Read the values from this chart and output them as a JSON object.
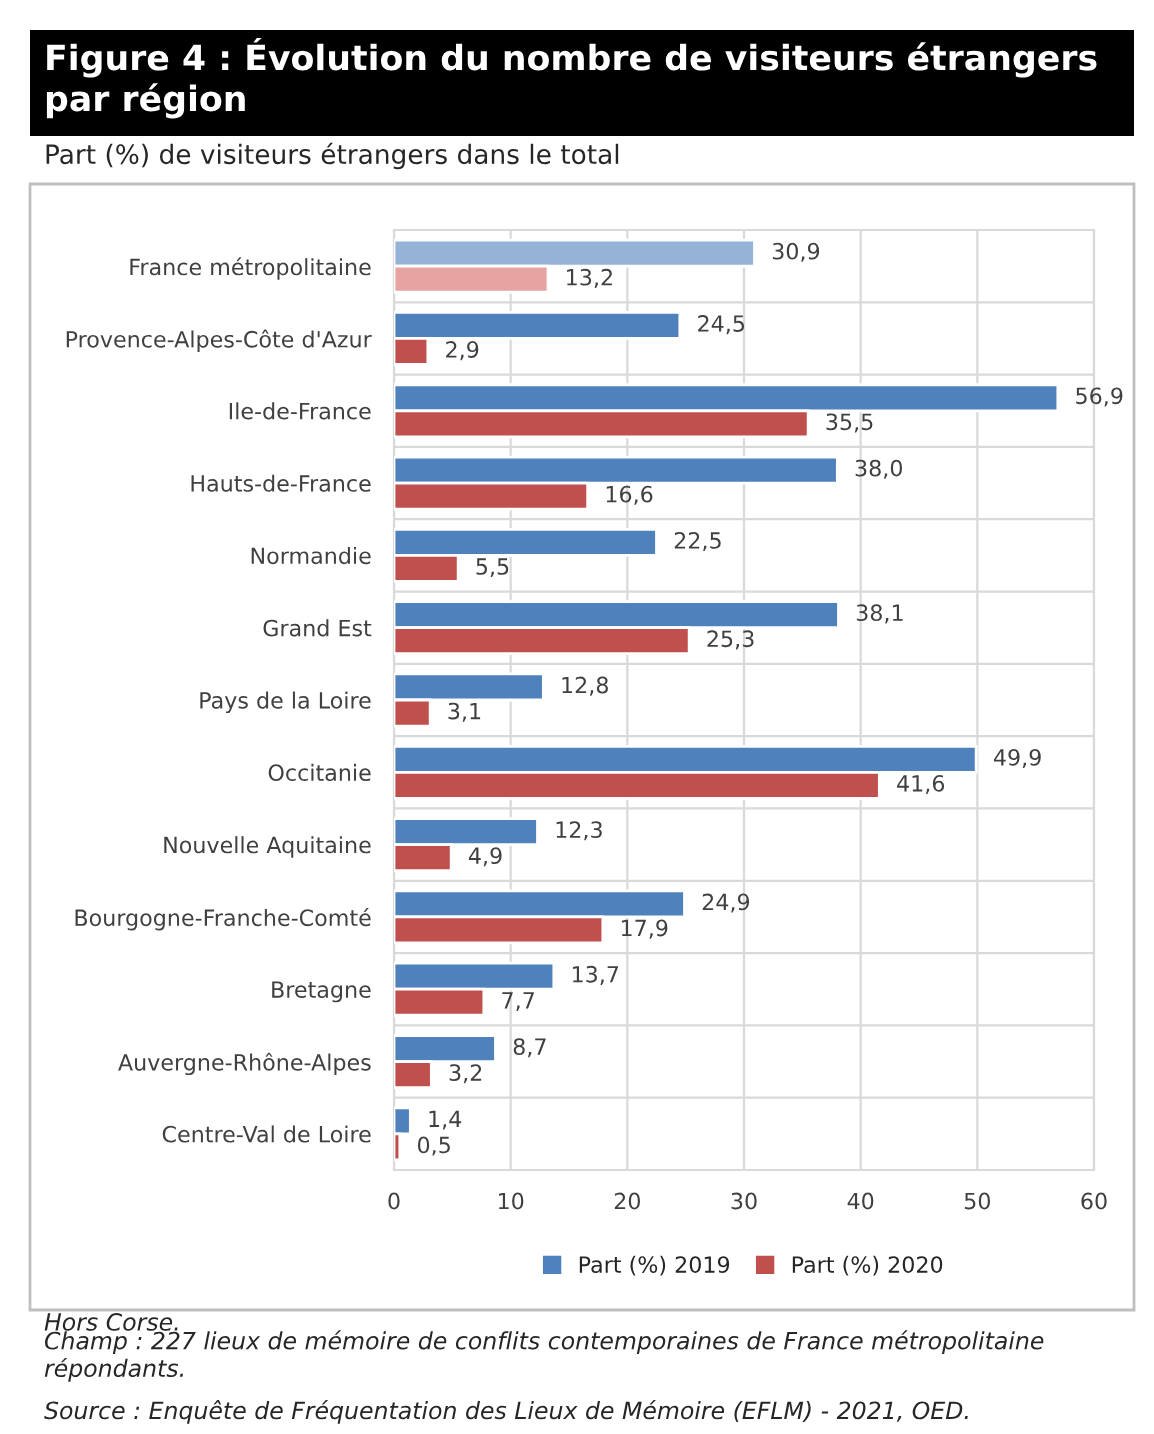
{
  "chart_data": {
    "type": "bar",
    "orientation": "horizontal",
    "title": "Figure 4 : Évolution du nombre de visiteurs étrangers par région",
    "subtitle": "Part (%) de visiteurs étrangers dans le total",
    "categories": [
      "France métropolitaine",
      "Provence-Alpes-Côte d'Azur",
      "Ile-de-France",
      "Hauts-de-France",
      "Normandie",
      "Grand Est",
      "Pays de la Loire",
      "Occitanie",
      "Nouvelle Aquitaine",
      "Bourgogne-Franche-Comté",
      "Bretagne",
      "Auvergne-Rhône-Alpes",
      "Centre-Val de Loire"
    ],
    "series": [
      {
        "name": "Part (%) 2019",
        "color": "#4f81bd",
        "colors": [
          "#95b3d7",
          "#4f81bd",
          "#4f81bd",
          "#4f81bd",
          "#4f81bd",
          "#4f81bd",
          "#4f81bd",
          "#4f81bd",
          "#4f81bd",
          "#4f81bd",
          "#4f81bd",
          "#4f81bd",
          "#4f81bd"
        ],
        "values": [
          30.9,
          24.5,
          56.9,
          38.0,
          22.5,
          38.1,
          12.8,
          49.9,
          12.3,
          24.9,
          13.7,
          8.7,
          1.4
        ],
        "value_labels": [
          "30,9",
          "24,5",
          "56,9",
          "38,0",
          "22,5",
          "38,1",
          "12,8",
          "49,9",
          "12,3",
          "24,9",
          "13,7",
          "8,7",
          "1,4"
        ]
      },
      {
        "name": "Part (%) 2020",
        "color": "#c0504d",
        "colors": [
          "#e6a3a2",
          "#c0504d",
          "#c0504d",
          "#c0504d",
          "#c0504d",
          "#c0504d",
          "#c0504d",
          "#c0504d",
          "#c0504d",
          "#c0504d",
          "#c0504d",
          "#c0504d",
          "#c0504d"
        ],
        "values": [
          13.2,
          2.9,
          35.5,
          16.6,
          5.5,
          25.3,
          3.1,
          41.6,
          4.9,
          17.9,
          7.7,
          3.2,
          0.5
        ],
        "value_labels": [
          "13,2",
          "2,9",
          "35,5",
          "16,6",
          "5,5",
          "25,3",
          "3,1",
          "41,6",
          "4,9",
          "17,9",
          "7,7",
          "3,2",
          "0,5"
        ]
      }
    ],
    "xlim": [
      0,
      60
    ],
    "xticks": [
      0,
      10,
      20,
      30,
      40,
      50,
      60
    ],
    "grid": true,
    "legend": "bottom",
    "annotations": [
      "Hors Corse.",
      "Champ : 227 lieux de mémoire de conflits contemporaines de France métropolitaine répondants.",
      "Source : Enquête de Fréquentation des Lieux de Mémoire (EFLM) - 2021, OED."
    ]
  }
}
